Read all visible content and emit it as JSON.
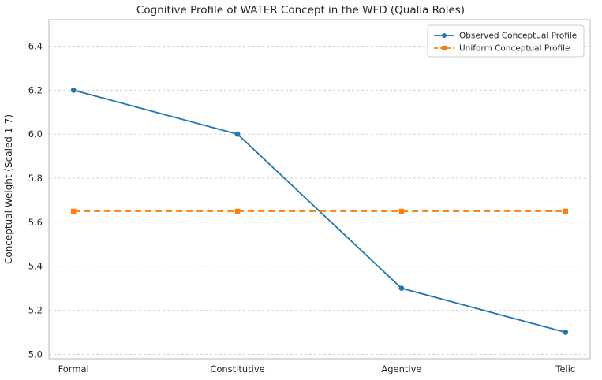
{
  "chart_data": {
    "type": "line",
    "title": "Cognitive Profile of WATER Concept in the WFD (Qualia Roles)",
    "ylabel": "Conceptual Weight (Scaled 1-7)",
    "xlabel": "",
    "categories": [
      "Formal",
      "Constitutive",
      "Agentive",
      "Telic"
    ],
    "series": [
      {
        "name": "Observed Conceptual Profile",
        "values": [
          6.2,
          6.0,
          5.3,
          5.1
        ],
        "color": "#1f77b4",
        "marker": "circle",
        "dash": ""
      },
      {
        "name": "Uniform Conceptual Profile",
        "values": [
          5.65,
          5.65,
          5.65,
          5.65
        ],
        "color": "#ff7f0e",
        "marker": "square",
        "dash": "8,5"
      }
    ],
    "ylim": [
      4.98,
      6.52
    ],
    "yticks": [
      5.0,
      5.2,
      5.4,
      5.6,
      5.8,
      6.0,
      6.2,
      6.4
    ],
    "grid": true,
    "legend_position": "upper right"
  }
}
